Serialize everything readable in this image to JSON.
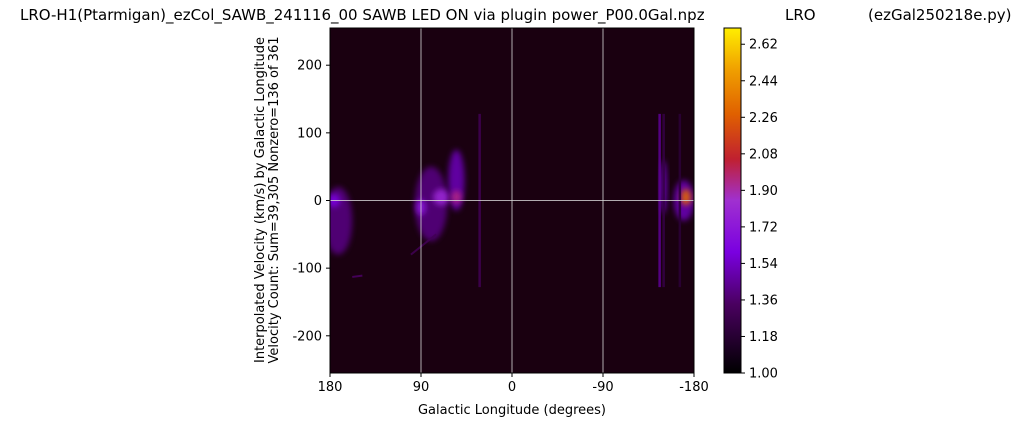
{
  "header": {
    "title": "LRO-H1(Ptarmigan)_ezCol_SAWB_241116_00 SAWB LED ON via plugin power_P00.0Gal.npz",
    "station": "LRO",
    "program": "(ezGal250218e.py)"
  },
  "chart_data": {
    "type": "heatmap",
    "xlabel": "Galactic Longitude (degrees)",
    "ylabel_line1": "Interpolated Velocity (km/s) by Galactic Longitude",
    "ylabel_line2": "Velocity Count: Sum=39,305 Nonzero=136 of 361",
    "x_range": [
      180,
      -180
    ],
    "y_range": [
      -255,
      255
    ],
    "x_ticks": [
      {
        "value": 180,
        "label": "180"
      },
      {
        "value": 90,
        "label": "90"
      },
      {
        "value": 0,
        "label": "0"
      },
      {
        "value": -90,
        "label": "-90"
      },
      {
        "value": -180,
        "label": "-180"
      }
    ],
    "y_ticks": [
      {
        "value": 200,
        "label": "200"
      },
      {
        "value": 100,
        "label": "100"
      },
      {
        "value": 0,
        "label": "0"
      },
      {
        "value": -100,
        "label": "-100"
      },
      {
        "value": -200,
        "label": "-200"
      }
    ],
    "grid": true,
    "colormap": "gnuplot",
    "background_color": "#1a0010",
    "colorbar": {
      "range": [
        1.0,
        2.7
      ],
      "ticks": [
        "1.00",
        "1.18",
        "1.36",
        "1.54",
        "1.72",
        "1.90",
        "2.08",
        "2.26",
        "2.44",
        "2.62"
      ],
      "tick_values": [
        1.0,
        1.18,
        1.36,
        1.54,
        1.72,
        1.9,
        2.08,
        2.26,
        2.44,
        2.62
      ]
    },
    "features": [
      {
        "kind": "blob",
        "lon": 172,
        "vel": -30,
        "dlon": 14,
        "dvel": 50,
        "value": 1.4
      },
      {
        "kind": "blob",
        "lon": 176,
        "vel": 0,
        "dlon": 6,
        "dvel": 10,
        "value": 1.6
      },
      {
        "kind": "blob",
        "lon": 80,
        "vel": -5,
        "dlon": 16,
        "dvel": 55,
        "value": 1.4
      },
      {
        "kind": "blob",
        "lon": 70,
        "vel": 5,
        "dlon": 8,
        "dvel": 12,
        "value": 1.8
      },
      {
        "kind": "blob",
        "lon": 55,
        "vel": 30,
        "dlon": 8,
        "dvel": 45,
        "value": 1.5
      },
      {
        "kind": "blob",
        "lon": 55,
        "vel": 5,
        "dlon": 5,
        "dvel": 10,
        "value": 1.95
      },
      {
        "kind": "blob",
        "lon": 90,
        "vel": -10,
        "dlon": 5,
        "dvel": 12,
        "value": 1.7
      },
      {
        "kind": "blob",
        "lon": -170,
        "vel": 0,
        "dlon": 10,
        "dvel": 30,
        "value": 1.5
      },
      {
        "kind": "blob",
        "lon": -172,
        "vel": 5,
        "dlon": 5,
        "dvel": 12,
        "value": 2.3
      },
      {
        "kind": "blob",
        "lon": -150,
        "vel": 20,
        "dlon": 3,
        "dvel": 40,
        "value": 1.55
      },
      {
        "kind": "streak",
        "lon": 32,
        "vel_min": -128,
        "vel_max": 128,
        "value": 1.3
      },
      {
        "kind": "streak",
        "lon": -146,
        "vel_min": -128,
        "vel_max": 128,
        "value": 1.45
      },
      {
        "kind": "streak",
        "lon": -150,
        "vel_min": -128,
        "vel_max": 128,
        "value": 1.25
      },
      {
        "kind": "streak",
        "lon": -166,
        "vel_min": -128,
        "vel_max": 128,
        "value": 1.2
      },
      {
        "kind": "segment",
        "lon_start": 158,
        "lon_end": 148,
        "vel_start": -113,
        "vel_end": -111,
        "value": 1.35
      },
      {
        "kind": "segment",
        "lon_start": 100,
        "lon_end": 75,
        "vel_start": -80,
        "vel_end": -50,
        "value": 1.3
      }
    ],
    "reference_lines": {
      "vertical": [
        90,
        0,
        -90
      ],
      "horizontal": [
        0
      ]
    }
  }
}
